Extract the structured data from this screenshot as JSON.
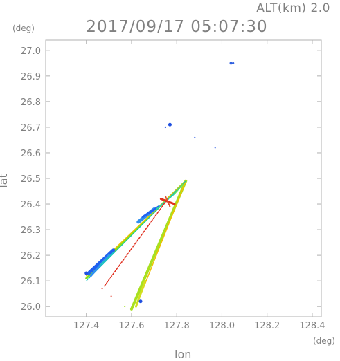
{
  "header": {
    "altitude_label": "ALT(km) 2.0",
    "timestamp": "2017/09/17 05:07:30"
  },
  "chart_data": {
    "type": "scatter",
    "title": "2017/09/17 05:07:30",
    "xlabel": "lon",
    "ylabel": "lat",
    "x_unit": "(deg)",
    "y_unit": "(deg)",
    "xlim": [
      127.22,
      128.44
    ],
    "ylim": [
      25.96,
      27.04
    ],
    "x_ticks": [
      "127.4",
      "127.6",
      "127.8",
      "128.0",
      "128.2",
      "128.4"
    ],
    "y_ticks": [
      "26.0",
      "26.1",
      "26.2",
      "26.3",
      "26.4",
      "26.5",
      "26.6",
      "26.7",
      "26.8",
      "26.9",
      "27.0"
    ],
    "grid": false,
    "origin": [
      127.84,
      26.49
    ],
    "beams": [
      {
        "from": [
          127.84,
          26.49
        ],
        "to": [
          127.4,
          26.11
        ],
        "color": "#80e020",
        "width": 3
      },
      {
        "from": [
          127.84,
          26.49
        ],
        "to": [
          127.4,
          26.12
        ],
        "color": "#f0c000",
        "width": 1.5
      },
      {
        "from": [
          127.84,
          26.49
        ],
        "to": [
          127.6,
          25.99
        ],
        "color": "#a8e020",
        "width": 4
      },
      {
        "from": [
          127.84,
          26.49
        ],
        "to": [
          127.62,
          26.0
        ],
        "color": "#f0c000",
        "width": 1.5
      },
      {
        "from": [
          127.84,
          26.49
        ],
        "to": [
          127.4,
          26.1
        ],
        "color": "#00c0c0",
        "width": 1
      }
    ],
    "echo_segments": [
      {
        "from": [
          127.41,
          26.13
        ],
        "to": [
          127.52,
          26.22
        ],
        "color": "#2060f0",
        "width": 5
      },
      {
        "from": [
          127.42,
          26.12
        ],
        "to": [
          127.5,
          26.2
        ],
        "color": "#3090f0",
        "width": 3
      },
      {
        "from": [
          127.63,
          26.33
        ],
        "to": [
          127.7,
          26.38
        ],
        "color": "#3090f0",
        "width": 5
      },
      {
        "from": [
          127.65,
          26.35
        ],
        "to": [
          127.72,
          26.39
        ],
        "color": "#2060f0",
        "width": 3
      },
      {
        "from": [
          127.46,
          26.16
        ],
        "to": [
          127.52,
          26.21
        ],
        "color": "#20c0c0",
        "width": 2
      },
      {
        "from": [
          127.71,
          26.38
        ],
        "to": [
          127.79,
          26.44
        ],
        "color": "#30d0a0",
        "width": 2
      },
      {
        "from": [
          127.79,
          26.44
        ],
        "to": [
          127.83,
          26.48
        ],
        "color": "#60e060",
        "width": 2
      },
      {
        "from": [
          127.48,
          26.08
        ],
        "to": [
          127.76,
          26.42
        ],
        "color": "#e03020",
        "width": 1.5
      },
      {
        "from": [
          127.73,
          26.42
        ],
        "to": [
          127.79,
          26.4
        ],
        "color": "#e03020",
        "width": 3
      },
      {
        "from": [
          127.75,
          26.43
        ],
        "to": [
          127.77,
          26.39
        ],
        "color": "#e05030",
        "width": 2
      },
      {
        "from": [
          127.62,
          26.0
        ],
        "to": [
          127.66,
          26.1
        ],
        "color": "#d0e020",
        "width": 3
      }
    ],
    "points": [
      {
        "lon": 128.04,
        "lat": 26.95,
        "color": "#3060e0",
        "size": 2
      },
      {
        "lon": 128.05,
        "lat": 26.95,
        "color": "#3060e0",
        "size": 1.5
      },
      {
        "lon": 127.77,
        "lat": 26.71,
        "color": "#2050e0",
        "size": 2.5
      },
      {
        "lon": 127.75,
        "lat": 26.7,
        "color": "#2050e0",
        "size": 1.2
      },
      {
        "lon": 127.88,
        "lat": 26.66,
        "color": "#2050e0",
        "size": 1
      },
      {
        "lon": 127.97,
        "lat": 26.62,
        "color": "#2050e0",
        "size": 1
      },
      {
        "lon": 127.64,
        "lat": 26.02,
        "color": "#2050e0",
        "size": 2.5
      },
      {
        "lon": 127.47,
        "lat": 26.07,
        "color": "#e03020",
        "size": 1
      },
      {
        "lon": 127.51,
        "lat": 26.04,
        "color": "#e03020",
        "size": 1
      },
      {
        "lon": 127.57,
        "lat": 26.0,
        "color": "#a0e020",
        "size": 1
      },
      {
        "lon": 127.4,
        "lat": 26.13,
        "color": "#2050e0",
        "size": 2.5
      }
    ]
  }
}
